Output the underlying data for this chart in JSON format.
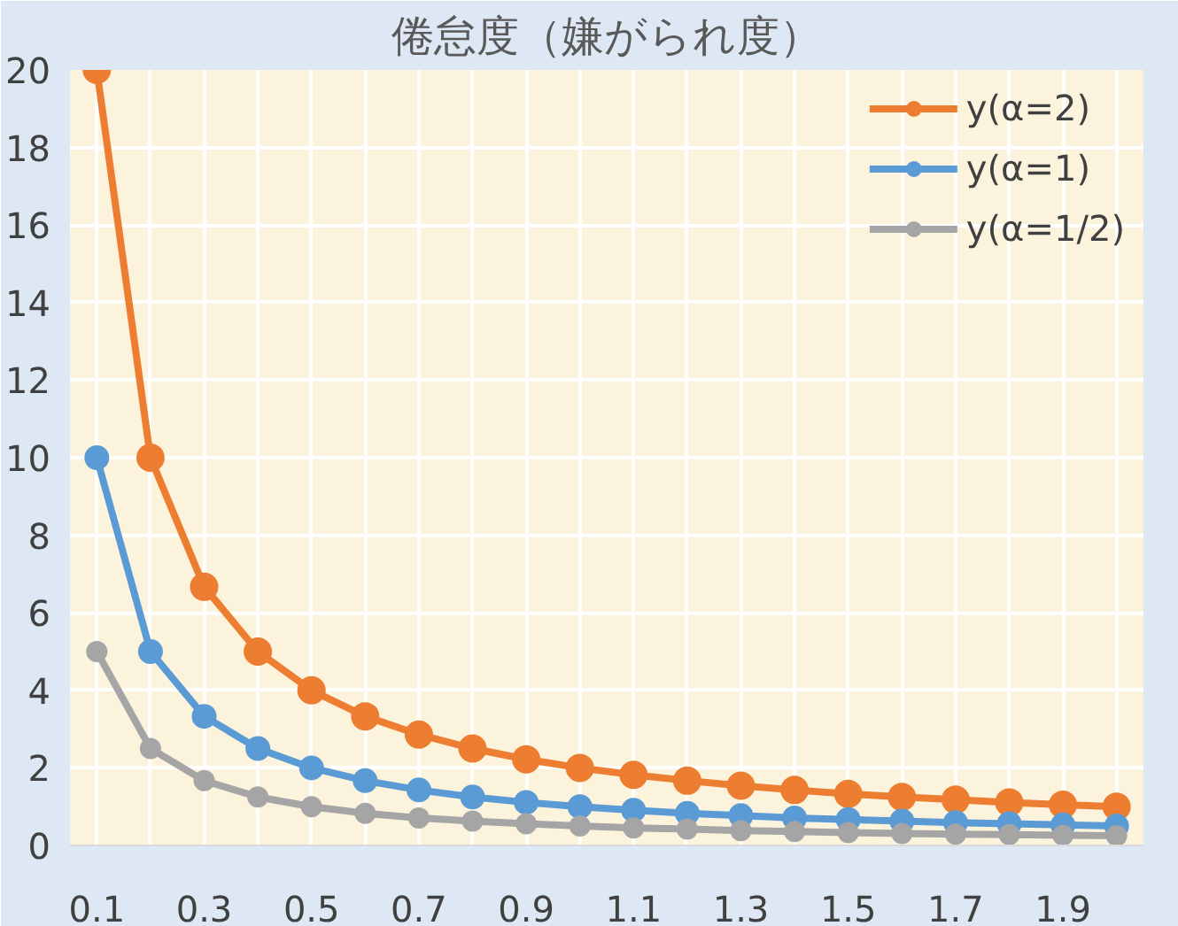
{
  "chart_data": {
    "type": "line",
    "title": "倦怠度（嫌がられ度）",
    "categories": [
      "0.1",
      null,
      "0.3",
      null,
      "0.5",
      null,
      "0.7",
      null,
      "0.9",
      null,
      "1.1",
      null,
      "1.3",
      null,
      "1.5",
      null,
      "1.7",
      null,
      "1.9",
      null
    ],
    "series": [
      {
        "name": "y(α=2)",
        "color": "#ed7d31",
        "values": [
          20,
          10,
          6.67,
          5,
          4,
          3.33,
          2.86,
          2.5,
          2.22,
          2,
          1.82,
          1.67,
          1.54,
          1.43,
          1.33,
          1.25,
          1.18,
          1.11,
          1.05,
          1
        ]
      },
      {
        "name": "y(α=1)",
        "color": "#5b9bd5",
        "values": [
          10,
          5,
          3.33,
          2.5,
          2,
          1.67,
          1.43,
          1.25,
          1.11,
          1,
          0.91,
          0.83,
          0.77,
          0.71,
          0.67,
          0.63,
          0.59,
          0.56,
          0.53,
          0.5
        ]
      },
      {
        "name": "y(α=1/2)",
        "color": "#a5a5a5",
        "values": [
          5,
          2.5,
          1.67,
          1.25,
          1,
          0.83,
          0.71,
          0.63,
          0.56,
          0.5,
          0.45,
          0.42,
          0.38,
          0.36,
          0.33,
          0.31,
          0.29,
          0.28,
          0.26,
          0.25
        ]
      }
    ],
    "ylim": [
      0,
      20
    ],
    "yticks": [
      0,
      2,
      4,
      6,
      8,
      10,
      12,
      14,
      16,
      18,
      20
    ],
    "grid": true,
    "legend": "top right",
    "marker": "circle",
    "line_style": "solid"
  }
}
